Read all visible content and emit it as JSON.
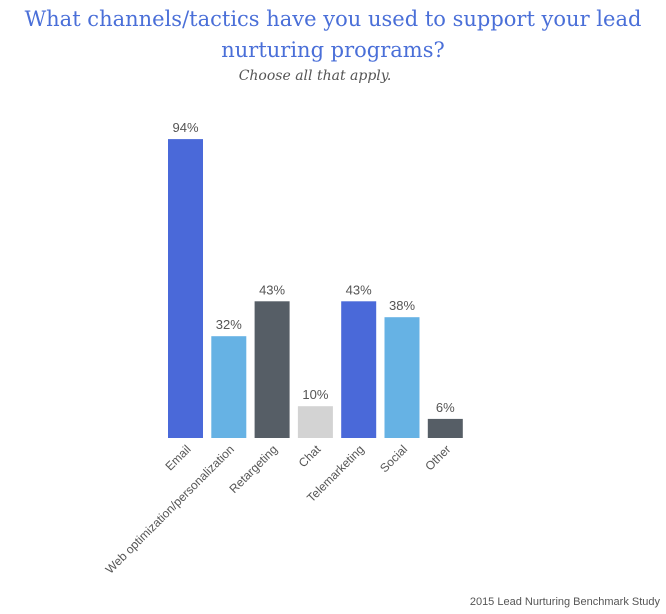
{
  "title": "What channels/tactics have you used to support your lead nurturing programs?",
  "subtitle": "Choose all that apply.",
  "source": "2015 Lead Nurturing Benchmark Study",
  "colors": {
    "royal_blue": "#4a69d9",
    "light_blue": "#66b2e4",
    "dark_gray": "#565e66",
    "light_gray": "#d3d3d3",
    "text": "#555555"
  },
  "chart_data": {
    "type": "bar",
    "categories": [
      "Email",
      "Web optimization/personalization",
      "Retargeting",
      "Chat",
      "Telemarketing",
      "Social",
      "Other"
    ],
    "values": [
      94,
      32,
      43,
      10,
      43,
      38,
      6
    ],
    "value_labels": [
      "94%",
      "32%",
      "43%",
      "10%",
      "43%",
      "38%",
      "6%"
    ],
    "bar_colors": [
      "#4a69d9",
      "#66b2e4",
      "#565e66",
      "#d3d3d3",
      "#4a69d9",
      "#66b2e4",
      "#565e66"
    ],
    "ylim": [
      0,
      100
    ],
    "grid": false
  }
}
